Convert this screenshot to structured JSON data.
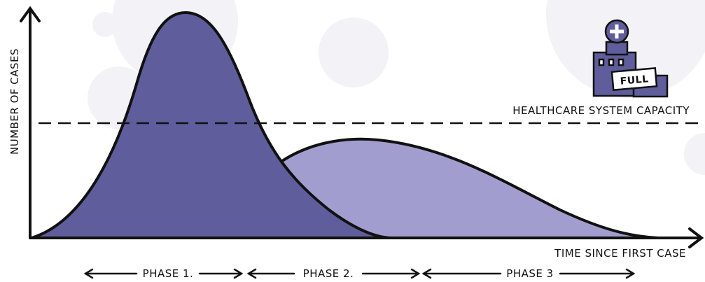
{
  "axes": {
    "y_label": "NUMBER OF CASES",
    "x_label": "TIME SINCE FIRST CASE"
  },
  "capacity_label": "HEALTHCARE SYSTEM CAPACITY",
  "hospital": {
    "sign": "FULL"
  },
  "phases": [
    "PHASE 1.",
    "PHASE 2.",
    "PHASE 3"
  ]
}
